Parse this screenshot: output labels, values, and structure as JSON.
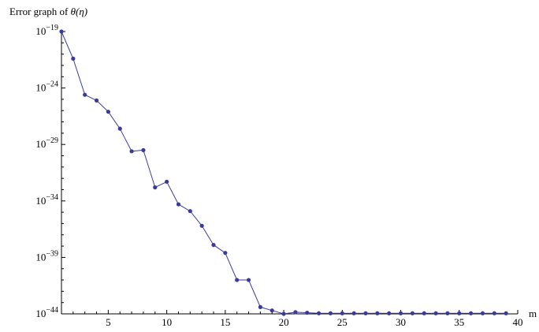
{
  "chart_data": {
    "type": "line",
    "title_prefix": "Error graph of ",
    "title_symbol": "θ(η)",
    "xlabel": "m",
    "ylabel": "",
    "xlim": [
      1,
      40
    ],
    "ylim_log10": [
      -44,
      -19
    ],
    "y_scale": "log",
    "grid": false,
    "x_ticks": [
      5,
      10,
      15,
      20,
      25,
      30,
      35,
      40
    ],
    "x_tick_labels": [
      "5",
      "10",
      "15",
      "20",
      "25",
      "30",
      "35",
      "40"
    ],
    "y_ticks_exp": [
      -44,
      -39,
      -34,
      -29,
      -24,
      -19
    ],
    "y_tick_base": "10",
    "y_tick_exps": [
      "−44",
      "−39",
      "−34",
      "−29",
      "−24",
      "−19"
    ],
    "colors": {
      "line": "#3a3a9a",
      "marker": "#3a3a9a",
      "axis": "#000000"
    },
    "series": [
      {
        "x": [
          1,
          2,
          3,
          4,
          5,
          6,
          7,
          8,
          9,
          10,
          11,
          12,
          13,
          14,
          15,
          16,
          17,
          18,
          19,
          20,
          21,
          22,
          23,
          24,
          25,
          26,
          27,
          28,
          29,
          30,
          31,
          32,
          33,
          34,
          35,
          36,
          37,
          38,
          39
        ],
        "log10_y": [
          -19,
          -21.4,
          -24.6,
          -25.1,
          -26.1,
          -27.6,
          -29.6,
          -29.5,
          -32.8,
          -32.3,
          -34.3,
          -34.9,
          -36.2,
          -37.9,
          -38.6,
          -41.0,
          -41.0,
          -43.4,
          -43.7,
          -44.0,
          -43.85,
          -43.9,
          -43.95,
          -43.95,
          -43.95,
          -43.95,
          -43.95,
          -43.95,
          -43.95,
          -43.95,
          -43.95,
          -43.95,
          -43.95,
          -43.95,
          -43.95,
          -43.95,
          -43.95,
          -43.95,
          -43.95
        ]
      }
    ]
  }
}
